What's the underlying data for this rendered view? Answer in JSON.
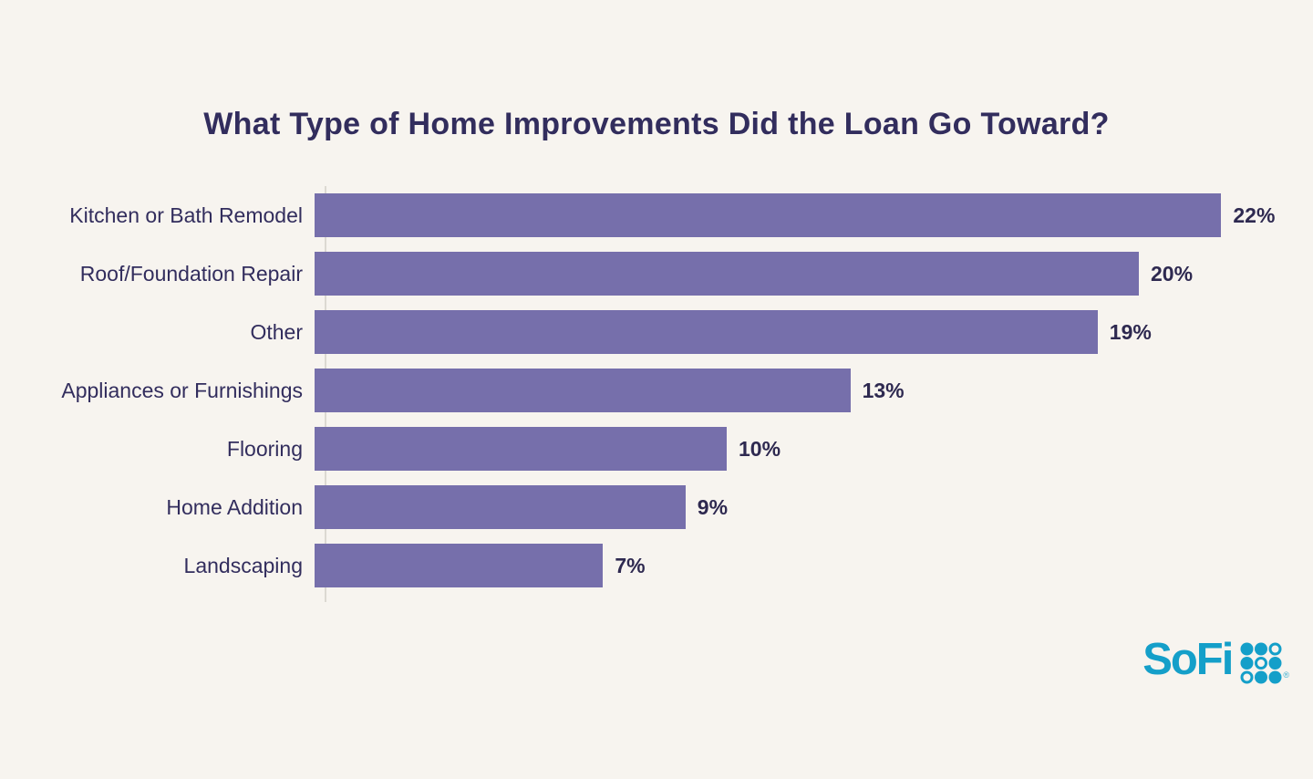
{
  "page": {
    "background_color": "#f7f4ef"
  },
  "chart_data": {
    "type": "bar",
    "orientation": "horizontal",
    "title": "What Type of Home Improvements Did the Loan Go Toward?",
    "categories": [
      "Kitchen or Bath Remodel",
      "Roof/Foundation Repair",
      "Other",
      "Appliances or Furnishings",
      "Flooring",
      "Home Addition",
      "Landscaping"
    ],
    "values": [
      22,
      20,
      19,
      13,
      10,
      9,
      7
    ],
    "value_labels": [
      "22%",
      "20%",
      "19%",
      "13%",
      "10%",
      "9%",
      "7%"
    ],
    "xlim": [
      0,
      22
    ],
    "grid": false,
    "legend": false,
    "bar_color": "#766fab",
    "text_color": "#322d5d",
    "value_label_color": "#2e2950",
    "axis_line_color": "#dcd9d2"
  },
  "branding": {
    "logo_text": "SoFi",
    "logo_color": "#149fc9",
    "registered_mark": "®",
    "logo_grid_pattern": [
      [
        "filled",
        "filled",
        "outline"
      ],
      [
        "filled",
        "outline",
        "filled"
      ],
      [
        "outline",
        "filled",
        "filled"
      ]
    ]
  }
}
